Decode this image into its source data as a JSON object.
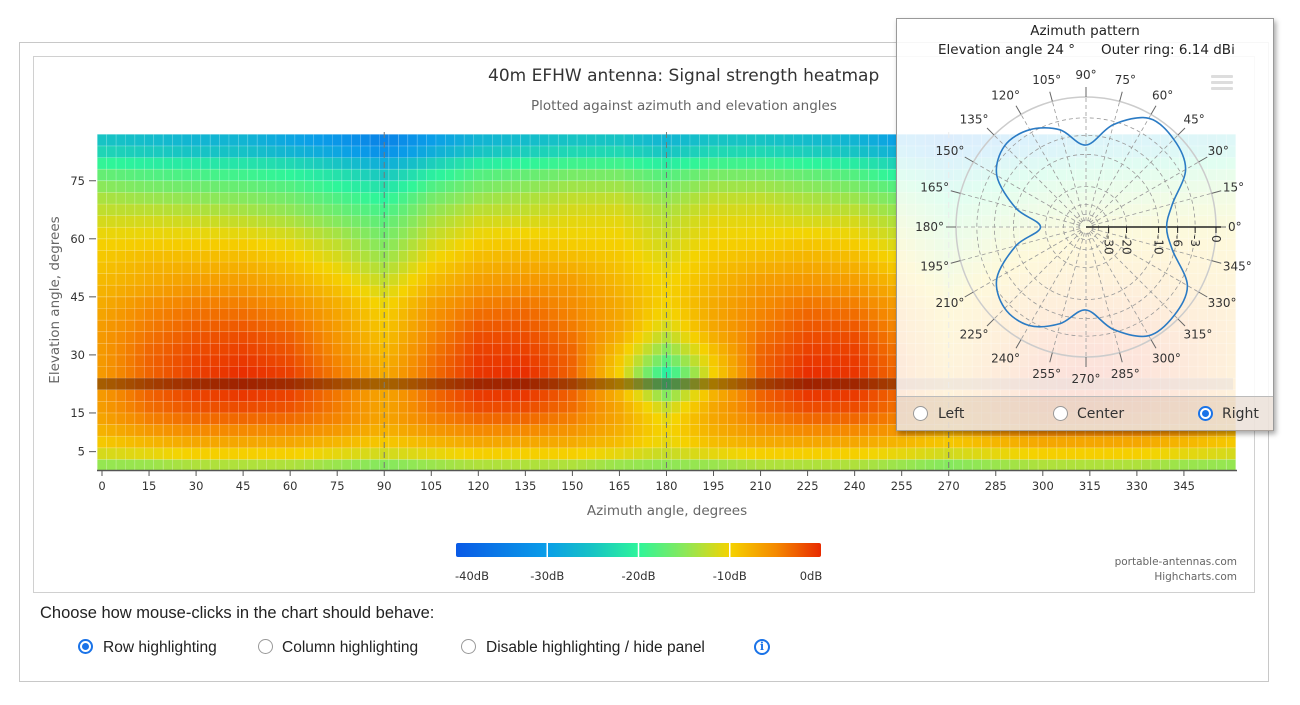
{
  "chart_data": [
    {
      "type": "heatmap",
      "title": "40m EFHW antenna: Signal strength heatmap",
      "subtitle": "Plotted against azimuth and elevation angles",
      "xlabel": "Azimuth angle, degrees",
      "ylabel": "Elevation angle, degrees",
      "x_ticks": [
        "0",
        "15",
        "30",
        "45",
        "60",
        "75",
        "90",
        "105",
        "120",
        "135",
        "150",
        "165",
        "180",
        "195",
        "210",
        "225",
        "240",
        "255",
        "270",
        "285",
        "300",
        "315",
        "330",
        "345"
      ],
      "y_ticks": [
        "5",
        "15",
        "30",
        "45",
        "60",
        "75"
      ],
      "xlim": [
        0,
        360
      ],
      "ylim": [
        0,
        87
      ],
      "grid_azimuths": [
        0,
        15,
        30,
        45,
        60,
        75,
        90,
        105,
        120,
        135,
        150,
        165,
        180,
        195,
        210,
        225,
        240,
        255,
        270,
        285,
        300,
        315,
        330,
        345
      ],
      "grid_elevations": [
        0,
        6,
        12,
        18,
        24,
        30,
        36,
        42,
        48,
        54,
        60,
        66,
        72,
        78,
        84
      ],
      "values_db": [
        [
          -16,
          -16,
          -15,
          -15,
          -15,
          -16,
          -17,
          -16,
          -15,
          -15,
          -15,
          -16,
          -16,
          -16,
          -15,
          -15,
          -15,
          -16,
          -17,
          -16,
          -15,
          -15,
          -15,
          -16
        ],
        [
          -10,
          -9,
          -8,
          -8,
          -8,
          -9,
          -10,
          -9,
          -8,
          -8,
          -8,
          -9,
          -11,
          -9,
          -8,
          -8,
          -8,
          -9,
          -10,
          -9,
          -8,
          -8,
          -8,
          -9
        ],
        [
          -7,
          -5,
          -4,
          -4,
          -4,
          -5,
          -7,
          -5,
          -4,
          -4,
          -5,
          -7,
          -10,
          -7,
          -5,
          -4,
          -4,
          -5,
          -7,
          -5,
          -4,
          -4,
          -4,
          -5
        ],
        [
          -6,
          -3,
          -1.5,
          -1,
          -1.5,
          -4,
          -7,
          -3.5,
          -1,
          -1,
          -3,
          -7,
          -13,
          -7,
          -3,
          -1,
          -1,
          -3.5,
          -7,
          -4,
          -1.5,
          -1,
          -1.5,
          -3
        ],
        [
          -6,
          -3,
          -1,
          0,
          -1,
          -4,
          -7,
          -3.5,
          -0.5,
          0,
          -3,
          -10,
          -22,
          -10,
          -3,
          0,
          -0.5,
          -3.5,
          -7,
          -4,
          -1,
          0,
          -1,
          -3
        ],
        [
          -6,
          -3,
          -1.5,
          -1,
          -2,
          -5,
          -8,
          -4,
          -1,
          -1,
          -3,
          -9,
          -16,
          -9,
          -3,
          -1,
          -1,
          -4,
          -8,
          -5,
          -2,
          -1,
          -1.5,
          -3
        ],
        [
          -6,
          -4,
          -2.5,
          -2,
          -3,
          -6,
          -9,
          -5,
          -2,
          -2,
          -4,
          -7,
          -12,
          -7,
          -4,
          -2,
          -2,
          -5,
          -9,
          -6,
          -3,
          -2,
          -2.5,
          -4
        ],
        [
          -7,
          -5,
          -4,
          -4,
          -5,
          -7,
          -10,
          -6,
          -4,
          -3.5,
          -5,
          -7,
          -10,
          -7,
          -5,
          -3.5,
          -4,
          -6,
          -10,
          -7,
          -5,
          -4,
          -4,
          -5
        ],
        [
          -8,
          -7,
          -6,
          -6,
          -7,
          -9,
          -12,
          -8,
          -6,
          -5.5,
          -6,
          -8,
          -10,
          -8,
          -6,
          -5.5,
          -6,
          -8,
          -12,
          -9,
          -7,
          -6,
          -6,
          -7
        ],
        [
          -9,
          -8,
          -8,
          -8,
          -9,
          -11,
          -14,
          -10,
          -8,
          -7.5,
          -8,
          -9,
          -11,
          -9,
          -8,
          -7.5,
          -8,
          -10,
          -14,
          -11,
          -9,
          -8,
          -8,
          -8
        ],
        [
          -10,
          -10,
          -10,
          -10,
          -11,
          -13,
          -16,
          -12,
          -10,
          -9.5,
          -10,
          -10,
          -12,
          -10,
          -10,
          -9.5,
          -10,
          -12,
          -16,
          -13,
          -11,
          -10,
          -10,
          -10
        ],
        [
          -12,
          -12,
          -12.5,
          -13,
          -14,
          -16,
          -18,
          -14,
          -12,
          -12,
          -11,
          -11,
          -13,
          -11,
          -11,
          -12,
          -12,
          -14,
          -18,
          -16,
          -14,
          -13,
          -12.5,
          -12
        ],
        [
          -14,
          -15,
          -15.5,
          -16,
          -17,
          -19,
          -21,
          -17,
          -15,
          -14,
          -13,
          -13,
          -15,
          -13,
          -13,
          -14,
          -15,
          -17,
          -21,
          -19,
          -17,
          -16,
          -15.5,
          -15
        ],
        [
          -18,
          -19,
          -19.5,
          -20,
          -21,
          -23,
          -26,
          -22,
          -19,
          -18,
          -17,
          -17,
          -19,
          -17,
          -17,
          -18,
          -19,
          -22,
          -26,
          -23,
          -21,
          -20,
          -19.5,
          -19
        ],
        [
          -25,
          -26,
          -27,
          -27,
          -29,
          -31,
          -34,
          -30,
          -27,
          -26,
          -25,
          -25,
          -27,
          -25,
          -25,
          -26,
          -27,
          -30,
          -34,
          -31,
          -29,
          -27,
          -27,
          -26
        ]
      ],
      "highlighted_elevation": 24,
      "reference_azimuths": [
        90,
        180,
        270
      ],
      "colorscale": [
        {
          "value": -40,
          "color": "#0a5ae6"
        },
        {
          "value": -30,
          "color": "#0a9ee8"
        },
        {
          "value": -25,
          "color": "#17c4c4"
        },
        {
          "value": -20,
          "color": "#2ef59a"
        },
        {
          "value": -15,
          "color": "#8ae85a"
        },
        {
          "value": -10,
          "color": "#f5d300"
        },
        {
          "value": -5,
          "color": "#f58a00"
        },
        {
          "value": 0,
          "color": "#e82a00"
        }
      ],
      "legend": {
        "position": "bottom-center",
        "labels": [
          "-40dB",
          "-30dB",
          "-20dB",
          "-10dB",
          "0dB"
        ]
      },
      "credits": [
        "portable-antennas.com",
        "Highcharts.com"
      ]
    },
    {
      "type": "polar-line",
      "title": "Azimuth pattern",
      "elevation_label": "Elevation angle 24 °",
      "outer_ring_label": "Outer ring: 6.14 dBi",
      "angle_labels": [
        "0°",
        "15°",
        "30°",
        "45°",
        "60°",
        "75°",
        "90°",
        "105°",
        "120°",
        "135°",
        "150°",
        "165°",
        "180°",
        "195°",
        "210°",
        "225°",
        "240°",
        "255°",
        "270°",
        "285°",
        "300°",
        "315°",
        "330°",
        "345°"
      ],
      "radial_ticks_db": [
        -30,
        -20,
        -10,
        -6,
        -3,
        0
      ],
      "radial_tick_labels": [
        "-30",
        "-20",
        "-10",
        "-6",
        "-3",
        "0"
      ],
      "azimuths": [
        0,
        15,
        30,
        45,
        60,
        75,
        90,
        105,
        120,
        135,
        150,
        165,
        180,
        195,
        210,
        225,
        240,
        255,
        270,
        285,
        300,
        315,
        330,
        345
      ],
      "values_db": [
        -8.2,
        -6.4,
        -2.1,
        -0.8,
        -0.6,
        -3.5,
        -7.9,
        -4.4,
        -2.5,
        -2.1,
        -4,
        -10,
        -18,
        -10,
        -4,
        -2.1,
        -2.3,
        -4.5,
        -7.7,
        -3.5,
        -0.6,
        -0.7,
        -1.8,
        -6.4
      ],
      "series_color": "#2b7bc4"
    }
  ],
  "popup": {
    "options": [
      {
        "label": "Left",
        "selected": false
      },
      {
        "label": "Center",
        "selected": false
      },
      {
        "label": "Right",
        "selected": true
      }
    ]
  },
  "controls": {
    "prompt": "Choose how mouse-clicks in the chart should behave:",
    "options": [
      {
        "label": "Row highlighting",
        "selected": true
      },
      {
        "label": "Column highlighting",
        "selected": false
      },
      {
        "label": "Disable highlighting / hide panel",
        "selected": false
      }
    ],
    "info_icon": "info-icon"
  }
}
